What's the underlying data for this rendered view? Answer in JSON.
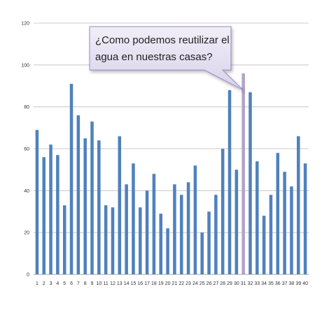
{
  "chart_data": {
    "type": "bar",
    "categories": [
      "1",
      "2",
      "3",
      "4",
      "5",
      "6",
      "7",
      "8",
      "9",
      "10",
      "11",
      "12",
      "13",
      "14",
      "15",
      "16",
      "17",
      "18",
      "19",
      "20",
      "21",
      "22",
      "23",
      "24",
      "25",
      "26",
      "27",
      "28",
      "29",
      "30",
      "31",
      "32",
      "33",
      "34",
      "35",
      "36",
      "37",
      "38",
      "39",
      "40"
    ],
    "values": [
      69,
      56,
      62,
      57,
      33,
      91,
      76,
      65,
      73,
      64,
      33,
      32,
      66,
      43,
      53,
      32,
      40,
      48,
      29,
      22,
      43,
      38,
      44,
      52,
      20,
      30,
      38,
      60,
      88,
      50,
      96,
      87,
      54,
      28,
      38,
      58,
      49,
      42,
      66,
      53
    ],
    "highlight_index": 30,
    "ylim": [
      0,
      120
    ],
    "yticks": [
      "0",
      "20",
      "40",
      "60",
      "80",
      "100",
      "120"
    ],
    "grid": true,
    "legend": "none",
    "colors": {
      "bar": "#4f81bd",
      "highlight_bar": "#b3a2c7",
      "callout_fill": "#e4dff0",
      "callout_border": "#9a88bf"
    },
    "annotation": {
      "line1": "¿Como podemos reutilizar el",
      "line2": "agua en nuestras casas?"
    }
  }
}
